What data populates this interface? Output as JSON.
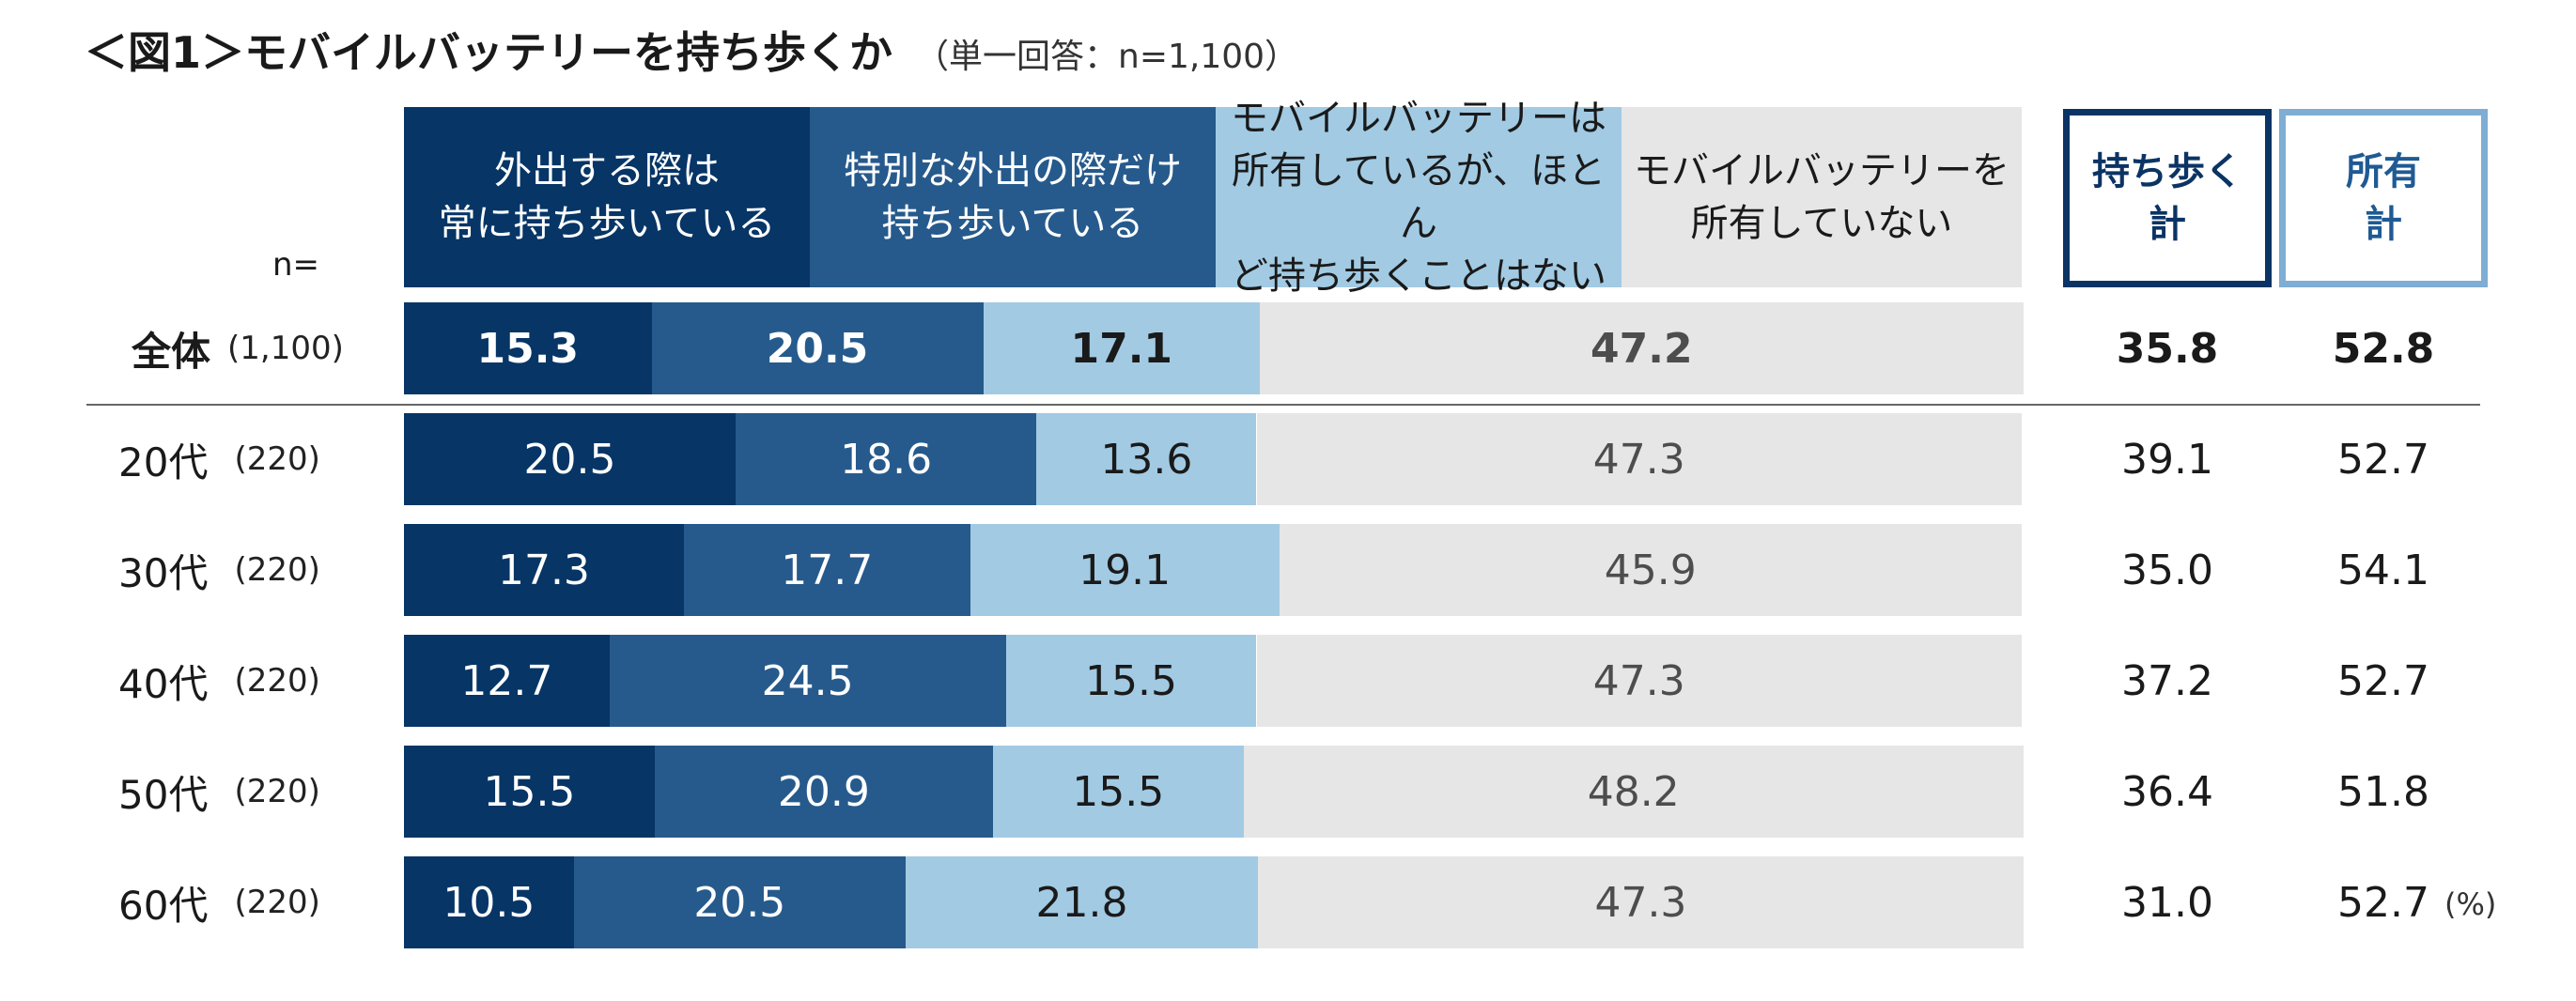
{
  "title": {
    "main": "＜図1＞モバイルバッテリーを持ち歩くか",
    "sub": "（単一回答：n=1,100）"
  },
  "n_label": "n=",
  "unit": "(%)",
  "colors": {
    "always": "#063566",
    "special": "#265a8c",
    "rarely": "#a2cae3",
    "none": "#e6e6e6",
    "carry_border": "#0b3464",
    "own_border": "#7fadd3"
  },
  "chart_data": {
    "type": "bar",
    "orientation": "horizontal",
    "stacked": true,
    "title": "＜図1＞モバイルバッテリーを持ち歩くか",
    "subtitle": "（単一回答：n=1,100）",
    "unit": "(%)",
    "xlim": [
      0,
      100
    ],
    "grid": false,
    "categories": [
      "全体",
      "20代",
      "30代",
      "40代",
      "50代",
      "60代"
    ],
    "n": [
      "(1,100)",
      "(220)",
      "(220)",
      "(220)",
      "(220)",
      "(220)"
    ],
    "series": [
      {
        "name": "外出する際は\n常に持ち歩いている",
        "values": [
          15.3,
          20.5,
          17.3,
          12.7,
          15.5,
          10.5
        ]
      },
      {
        "name": "特別な外出の際だけ\n持ち歩いている",
        "values": [
          20.5,
          18.6,
          17.7,
          24.5,
          20.9,
          20.5
        ]
      },
      {
        "name": "モバイルバッテリーは\n所有しているが、ほとん\nど持ち歩くことはない",
        "values": [
          17.1,
          13.6,
          19.1,
          15.5,
          15.5,
          21.8
        ]
      },
      {
        "name": "モバイルバッテリーを\n所有していない",
        "values": [
          47.2,
          47.3,
          45.9,
          47.3,
          48.2,
          47.3
        ]
      }
    ],
    "summary": [
      {
        "name": "持ち歩く\n計",
        "values": [
          35.8,
          39.1,
          35.0,
          37.2,
          36.4,
          31.0
        ]
      },
      {
        "name": "所有\n計",
        "values": [
          52.8,
          52.7,
          54.1,
          52.7,
          51.8,
          52.7
        ]
      }
    ]
  }
}
